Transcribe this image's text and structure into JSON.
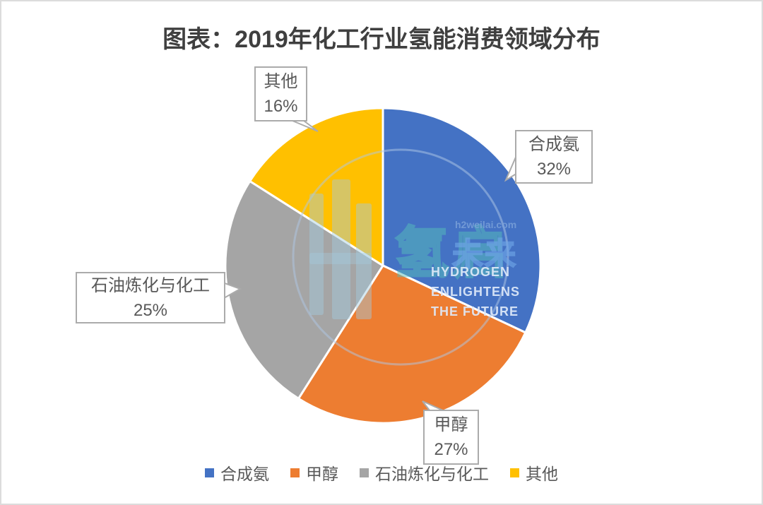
{
  "title": {
    "text": "图表：2019年化工行业氢能消费领域分布",
    "color": "#3f3f3f"
  },
  "chart_data": {
    "type": "pie",
    "title": "2019年化工行业氢能消费领域分布",
    "categories": [
      "合成氨",
      "甲醇",
      "石油炼化与化工",
      "其他"
    ],
    "values": [
      32,
      27,
      25,
      16
    ],
    "unit": "%",
    "colors": [
      "#4472C4",
      "#ED7D31",
      "#A5A5A5",
      "#FFC000"
    ],
    "start_angle_deg": 0,
    "direction": "clockwise",
    "slice_border_color": "#ffffff",
    "legend_position": "bottom",
    "data_labels": [
      {
        "name": "合成氨",
        "percent": "32%"
      },
      {
        "name": "甲醇",
        "percent": "27%"
      },
      {
        "name": "石油炼化与化工",
        "percent": "25%"
      },
      {
        "name": "其他",
        "percent": "16%"
      }
    ]
  },
  "callouts": [
    {
      "name": "合成氨",
      "percent": "32%"
    },
    {
      "name": "甲醇",
      "percent": "27%"
    },
    {
      "name": "石油炼化与化工",
      "percent": "25%"
    },
    {
      "name": "其他",
      "percent": "16%"
    }
  ],
  "legend": {
    "items": [
      {
        "label": "合成氨",
        "color": "#4472C4"
      },
      {
        "label": "甲醇",
        "color": "#ED7D31"
      },
      {
        "label": "石油炼化与化工",
        "color": "#A5A5A5"
      },
      {
        "label": "其他",
        "color": "#FFC000"
      }
    ]
  },
  "watermark": {
    "cn_main": "氢启",
    "cn_sub": "未来",
    "domain": "h2weilai.com",
    "en_lines": [
      "HYDROGEN",
      "ENLIGHTENS",
      "THE FUTURE"
    ]
  }
}
